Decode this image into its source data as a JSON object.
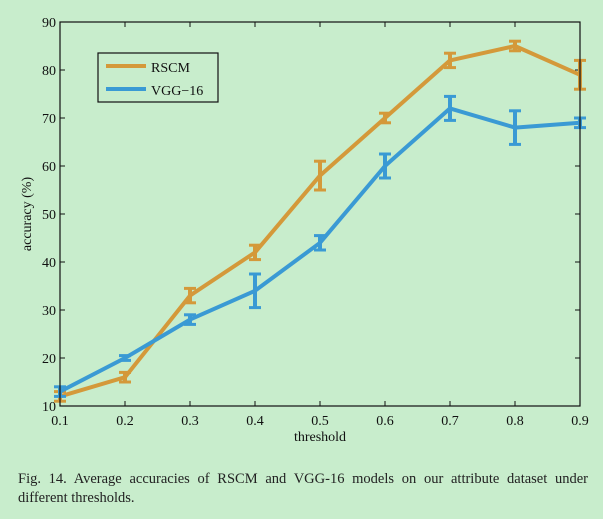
{
  "chart_data": {
    "type": "line",
    "xlabel": "threshold",
    "ylabel": "accuracy (%)",
    "xlim": [
      0.1,
      0.9
    ],
    "ylim": [
      10,
      90
    ],
    "xticks": [
      "0.1",
      "0.2",
      "0.3",
      "0.4",
      "0.5",
      "0.6",
      "0.7",
      "0.8",
      "0.9"
    ],
    "yticks": [
      "10",
      "20",
      "30",
      "40",
      "50",
      "60",
      "70",
      "80",
      "90"
    ],
    "x": [
      0.1,
      0.2,
      0.3,
      0.4,
      0.5,
      0.6,
      0.7,
      0.8,
      0.9
    ],
    "grid": false,
    "legend_placement": "top-left",
    "series": [
      {
        "name": "RSCM",
        "color": "#d4993a",
        "values": [
          12,
          16,
          33,
          42,
          58,
          70,
          82,
          85,
          79
        ],
        "errors": [
          1,
          1,
          1.5,
          1.5,
          3,
          1,
          1.5,
          1,
          3
        ]
      },
      {
        "name": "VGG−16",
        "color": "#3a9ad4",
        "values": [
          13,
          20,
          28,
          34,
          44,
          60,
          72,
          68,
          69
        ],
        "errors": [
          1,
          0.5,
          1,
          3.5,
          1.5,
          2.5,
          2.5,
          3.5,
          1
        ]
      }
    ]
  },
  "caption": "Fig. 14.   Average accuracies of RSCM and VGG-16 models on our attribute dataset under different thresholds."
}
